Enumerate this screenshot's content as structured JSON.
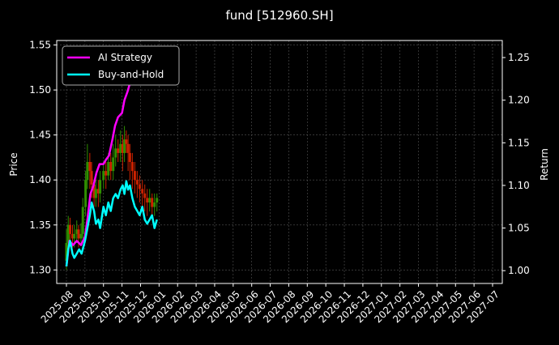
{
  "chart_data": {
    "type": "line",
    "title": "fund [512960.SH]",
    "ylabel_left": "Price",
    "ylabel_right": "Return",
    "xlabel": "",
    "grid": true,
    "legend_placement": "top-left",
    "ylim_left": [
      1.285,
      1.555
    ],
    "ylim_right": [
      0.985,
      1.27
    ],
    "x_ticks": [
      "2025-08",
      "2025-09",
      "2025-10",
      "2025-11",
      "2025-12",
      "2026-01",
      "2026-02",
      "2026-03",
      "2026-04",
      "2026-05",
      "2026-06",
      "2026-07",
      "2026-08",
      "2026-09",
      "2026-10",
      "2026-11",
      "2026-12",
      "2027-01",
      "2027-02",
      "2027-03",
      "2027-04",
      "2027-05",
      "2027-06",
      "2027-07"
    ],
    "y_ticks_left": [
      1.3,
      1.35,
      1.4,
      1.45,
      1.5,
      1.55
    ],
    "y_ticks_right": [
      1.0,
      1.05,
      1.1,
      1.15,
      1.2,
      1.25
    ],
    "series": [
      {
        "name": "AI Strategy",
        "axis": "right",
        "color": "#ff00ff",
        "points": [
          [
            "2025-08-01",
            1.005
          ],
          [
            "2025-08-06",
            1.035
          ],
          [
            "2025-08-12",
            1.03
          ],
          [
            "2025-08-18",
            1.035
          ],
          [
            "2025-08-25",
            1.03
          ],
          [
            "2025-09-01",
            1.04
          ],
          [
            "2025-09-05",
            1.06
          ],
          [
            "2025-09-10",
            1.09
          ],
          [
            "2025-09-15",
            1.1
          ],
          [
            "2025-09-20",
            1.115
          ],
          [
            "2025-09-25",
            1.125
          ],
          [
            "2025-10-01",
            1.125
          ],
          [
            "2025-10-05",
            1.13
          ],
          [
            "2025-10-10",
            1.135
          ],
          [
            "2025-10-16",
            1.155
          ],
          [
            "2025-10-20",
            1.17
          ],
          [
            "2025-10-25",
            1.18
          ],
          [
            "2025-11-01",
            1.185
          ],
          [
            "2025-11-05",
            1.2
          ],
          [
            "2025-11-10",
            1.21
          ],
          [
            "2025-11-14",
            1.22
          ],
          [
            "2025-11-18",
            1.225
          ],
          [
            "2025-11-22",
            1.235
          ],
          [
            "2025-11-26",
            1.24
          ],
          [
            "2025-12-01",
            1.245
          ],
          [
            "2025-12-05",
            1.25
          ],
          [
            "2025-12-08",
            1.255
          ]
        ]
      },
      {
        "name": "Buy-and-Hold",
        "axis": "right",
        "color": "#00ffff",
        "points": [
          [
            "2025-08-01",
            1.005
          ],
          [
            "2025-08-04",
            1.025
          ],
          [
            "2025-08-07",
            1.035
          ],
          [
            "2025-08-11",
            1.02
          ],
          [
            "2025-08-14",
            1.015
          ],
          [
            "2025-08-18",
            1.02
          ],
          [
            "2025-08-22",
            1.025
          ],
          [
            "2025-08-26",
            1.02
          ],
          [
            "2025-09-01",
            1.035
          ],
          [
            "2025-09-05",
            1.05
          ],
          [
            "2025-09-09",
            1.065
          ],
          [
            "2025-09-12",
            1.08
          ],
          [
            "2025-09-16",
            1.07
          ],
          [
            "2025-09-19",
            1.055
          ],
          [
            "2025-09-23",
            1.06
          ],
          [
            "2025-09-26",
            1.05
          ],
          [
            "2025-10-01",
            1.075
          ],
          [
            "2025-10-05",
            1.065
          ],
          [
            "2025-10-09",
            1.08
          ],
          [
            "2025-10-13",
            1.07
          ],
          [
            "2025-10-17",
            1.085
          ],
          [
            "2025-10-21",
            1.09
          ],
          [
            "2025-10-25",
            1.085
          ],
          [
            "2025-10-29",
            1.095
          ],
          [
            "2025-11-02",
            1.1
          ],
          [
            "2025-11-05",
            1.09
          ],
          [
            "2025-11-08",
            1.105
          ],
          [
            "2025-11-11",
            1.095
          ],
          [
            "2025-11-14",
            1.1
          ],
          [
            "2025-11-18",
            1.085
          ],
          [
            "2025-11-22",
            1.075
          ],
          [
            "2025-11-26",
            1.07
          ],
          [
            "2025-11-30",
            1.065
          ],
          [
            "2025-12-04",
            1.075
          ],
          [
            "2025-12-08",
            1.06
          ],
          [
            "2025-12-12",
            1.055
          ],
          [
            "2025-12-16",
            1.06
          ],
          [
            "2025-12-20",
            1.065
          ],
          [
            "2025-12-24",
            1.05
          ],
          [
            "2025-12-28",
            1.06
          ]
        ]
      }
    ],
    "price_candles": {
      "axis": "left",
      "up_color": "#2f8f00",
      "down_color": "#cc2200",
      "candles": [
        [
          "2025-08-01",
          1.31,
          1.33,
          1.3,
          1.345
        ],
        [
          "2025-08-04",
          1.33,
          1.35,
          1.325,
          1.36
        ],
        [
          "2025-08-07",
          1.35,
          1.34,
          1.33,
          1.358
        ],
        [
          "2025-08-11",
          1.34,
          1.335,
          1.325,
          1.35
        ],
        [
          "2025-08-14",
          1.335,
          1.34,
          1.325,
          1.35
        ],
        [
          "2025-08-18",
          1.34,
          1.345,
          1.33,
          1.355
        ],
        [
          "2025-08-21",
          1.345,
          1.335,
          1.325,
          1.35
        ],
        [
          "2025-08-25",
          1.335,
          1.34,
          1.33,
          1.352
        ],
        [
          "2025-08-28",
          1.34,
          1.37,
          1.335,
          1.38
        ],
        [
          "2025-09-02",
          1.37,
          1.4,
          1.36,
          1.41
        ],
        [
          "2025-09-05",
          1.4,
          1.42,
          1.39,
          1.44
        ],
        [
          "2025-09-09",
          1.42,
          1.41,
          1.39,
          1.43
        ],
        [
          "2025-09-12",
          1.41,
          1.395,
          1.38,
          1.42
        ],
        [
          "2025-09-16",
          1.395,
          1.38,
          1.37,
          1.4
        ],
        [
          "2025-09-19",
          1.38,
          1.39,
          1.37,
          1.4
        ],
        [
          "2025-09-23",
          1.39,
          1.385,
          1.37,
          1.4
        ],
        [
          "2025-09-26",
          1.385,
          1.4,
          1.375,
          1.41
        ],
        [
          "2025-10-01",
          1.4,
          1.41,
          1.39,
          1.42
        ],
        [
          "2025-10-05",
          1.41,
          1.405,
          1.39,
          1.42
        ],
        [
          "2025-10-09",
          1.405,
          1.42,
          1.4,
          1.43
        ],
        [
          "2025-10-13",
          1.42,
          1.41,
          1.4,
          1.43
        ],
        [
          "2025-10-17",
          1.41,
          1.425,
          1.4,
          1.44
        ],
        [
          "2025-10-21",
          1.425,
          1.435,
          1.415,
          1.45
        ],
        [
          "2025-10-25",
          1.435,
          1.43,
          1.42,
          1.445
        ],
        [
          "2025-10-29",
          1.43,
          1.44,
          1.42,
          1.455
        ],
        [
          "2025-11-02",
          1.44,
          1.43,
          1.41,
          1.45
        ],
        [
          "2025-11-05",
          1.43,
          1.445,
          1.42,
          1.46
        ],
        [
          "2025-11-08",
          1.445,
          1.44,
          1.43,
          1.455
        ],
        [
          "2025-11-11",
          1.44,
          1.43,
          1.41,
          1.45
        ],
        [
          "2025-11-14",
          1.43,
          1.42,
          1.4,
          1.44
        ],
        [
          "2025-11-18",
          1.42,
          1.41,
          1.39,
          1.43
        ],
        [
          "2025-11-22",
          1.41,
          1.4,
          1.385,
          1.42
        ],
        [
          "2025-11-26",
          1.4,
          1.395,
          1.38,
          1.41
        ],
        [
          "2025-11-30",
          1.395,
          1.39,
          1.375,
          1.405
        ],
        [
          "2025-12-04",
          1.39,
          1.385,
          1.37,
          1.4
        ],
        [
          "2025-12-08",
          1.385,
          1.38,
          1.365,
          1.395
        ],
        [
          "2025-12-12",
          1.38,
          1.375,
          1.36,
          1.39
        ],
        [
          "2025-12-16",
          1.375,
          1.38,
          1.365,
          1.39
        ],
        [
          "2025-12-20",
          1.38,
          1.37,
          1.36,
          1.385
        ],
        [
          "2025-12-24",
          1.37,
          1.375,
          1.36,
          1.385
        ],
        [
          "2025-12-28",
          1.375,
          1.38,
          1.365,
          1.385
        ]
      ]
    }
  }
}
